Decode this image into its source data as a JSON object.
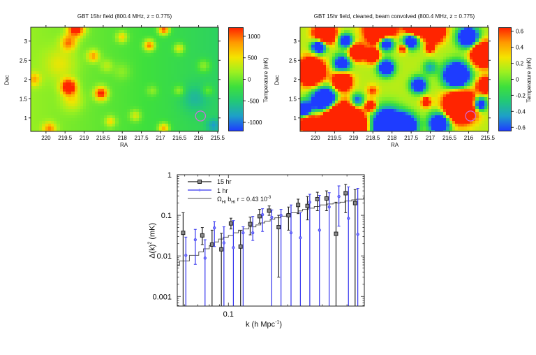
{
  "colors": {
    "colormap": [
      "#1e3cff",
      "#1ea0c8",
      "#22c878",
      "#3ee03c",
      "#9cf020",
      "#f4e400",
      "#ff9a00",
      "#ff2400"
    ],
    "black_series": "#222222",
    "blue_series": "#3333ee",
    "model_line": "#555555",
    "beam_circle": "#d070e0"
  },
  "maps": [
    {
      "title": "GBT 15hr field (800.4 MHz, z = 0.775)",
      "xlabel": "RA",
      "ylabel": "Dec",
      "colorbar_label": "Temperature (mK)",
      "xlim": [
        220.4,
        215.48
      ],
      "ylim": [
        0.65,
        3.36
      ],
      "clim": [
        -1210,
        1210
      ],
      "xticks": [
        "220",
        "219.5",
        "219",
        "218.5",
        "218",
        "217.5",
        "217",
        "216.5",
        "216",
        "215.5"
      ],
      "yticks": [
        "1",
        "1.5",
        "2",
        "2.5",
        "3"
      ],
      "cticks": [
        "-1000",
        "-500",
        "0",
        "500",
        "1000"
      ],
      "beam_circle": {
        "ra": 215.95,
        "dec": 1.05,
        "radius_deg": 0.13
      },
      "background": {
        "east": 150,
        "west": -380
      },
      "sources": [
        [
          219.4,
          1.8,
          1600,
          0.14
        ],
        [
          218.55,
          1.63,
          1400,
          0.12
        ],
        [
          219.4,
          2.95,
          900,
          0.14
        ],
        [
          219.2,
          3.32,
          1500,
          0.15
        ],
        [
          218.75,
          2.6,
          850,
          0.11
        ],
        [
          218.0,
          3.1,
          700,
          0.1
        ],
        [
          217.28,
          2.88,
          1150,
          0.1
        ],
        [
          216.9,
          3.3,
          1300,
          0.1
        ],
        [
          216.5,
          2.8,
          700,
          0.1
        ],
        [
          220.3,
          2.0,
          650,
          0.12
        ],
        [
          218.3,
          0.9,
          650,
          0.1
        ],
        [
          217.65,
          1.05,
          550,
          0.1
        ],
        [
          216.9,
          0.72,
          950,
          0.1
        ],
        [
          219.9,
          0.7,
          850,
          0.12
        ],
        [
          215.85,
          2.35,
          450,
          0.12
        ],
        [
          215.75,
          1.7,
          400,
          0.1
        ],
        [
          216.5,
          1.7,
          450,
          0.1
        ],
        [
          217.2,
          1.7,
          320,
          0.1
        ],
        [
          218.0,
          2.2,
          220,
          0.15
        ],
        [
          219.3,
          1.45,
          450,
          0.2
        ],
        [
          219.6,
          2.4,
          400,
          0.3
        ],
        [
          218.4,
          2.35,
          350,
          0.12
        ],
        [
          216.1,
          1.5,
          -350,
          0.25
        ],
        [
          215.6,
          0.8,
          -500,
          0.12
        ]
      ]
    },
    {
      "title": "GBT 15hr field, cleaned, beam convolved (800.4 MHz, z = 0.775)",
      "xlabel": "RA",
      "ylabel": "Dec",
      "colorbar_label": "Temperature (mK)",
      "xlim": [
        220.4,
        215.48
      ],
      "ylim": [
        0.65,
        3.36
      ],
      "clim": [
        -0.65,
        0.65
      ],
      "xticks": [
        "220",
        "219.5",
        "219",
        "218.5",
        "218",
        "217.5",
        "217",
        "216.5",
        "216",
        "215.5"
      ],
      "yticks": [
        "1",
        "1.5",
        "2",
        "2.5",
        "3"
      ],
      "cticks": [
        "-0.6",
        "-0.4",
        "-0.2",
        "0",
        "0.2",
        "0.4",
        "0.6"
      ],
      "beam_circle": {
        "ra": 215.95,
        "dec": 1.05,
        "radius_deg": 0.13
      },
      "background": {
        "east": 0.15,
        "west": 0.15
      },
      "sources": [
        [
          220.1,
          2.2,
          2.2,
          0.22
        ],
        [
          219.75,
          3.2,
          2.0,
          0.18
        ],
        [
          218.3,
          3.3,
          2.2,
          0.25
        ],
        [
          217.4,
          3.35,
          1.6,
          0.18
        ],
        [
          216.9,
          3.25,
          2.0,
          0.18
        ],
        [
          215.6,
          2.65,
          2.2,
          0.2
        ],
        [
          219.3,
          1.95,
          1.8,
          0.16
        ],
        [
          219.4,
          0.95,
          2.6,
          0.3
        ],
        [
          218.9,
          0.8,
          1.6,
          0.2
        ],
        [
          216.2,
          1.3,
          2.6,
          0.26
        ],
        [
          215.55,
          1.85,
          1.8,
          0.13
        ],
        [
          218.9,
          2.7,
          1.6,
          0.14
        ],
        [
          218.5,
          2.6,
          1.4,
          0.12
        ],
        [
          220.2,
          0.85,
          1.8,
          0.15
        ],
        [
          217.7,
          2.8,
          0.9,
          0.08
        ],
        [
          217.0,
          2.8,
          1.0,
          0.08
        ],
        [
          217.1,
          1.4,
          0.9,
          0.09
        ],
        [
          218.55,
          1.3,
          1.1,
          0.1
        ],
        [
          218.5,
          1.7,
          0.5,
          0.1
        ],
        [
          219.9,
          2.85,
          -2.0,
          0.12
        ],
        [
          219.75,
          1.45,
          -2.2,
          0.22
        ],
        [
          219.2,
          3.0,
          -1.4,
          0.12
        ],
        [
          218.15,
          2.95,
          -1.8,
          0.14
        ],
        [
          217.5,
          3.0,
          -1.6,
          0.14
        ],
        [
          218.15,
          2.3,
          -1.6,
          0.14
        ],
        [
          217.3,
          1.85,
          -1.4,
          0.14
        ],
        [
          218.1,
          0.8,
          -2.2,
          0.28
        ],
        [
          217.6,
          0.8,
          -1.8,
          0.18
        ],
        [
          216.3,
          2.1,
          -2.2,
          0.22
        ],
        [
          215.7,
          1.35,
          -1.6,
          0.12
        ],
        [
          216.75,
          0.85,
          -1.8,
          0.18
        ],
        [
          220.3,
          1.2,
          -1.8,
          0.14
        ],
        [
          219.3,
          2.4,
          -1.4,
          0.15
        ],
        [
          216.0,
          3.1,
          -1.8,
          0.18
        ],
        [
          217.0,
          2.3,
          -0.6,
          0.12
        ],
        [
          218.9,
          1.45,
          -0.9,
          0.12
        ]
      ]
    }
  ],
  "chart_data": {
    "type": "scatter",
    "xlabel": "k (h Mpc",
    "xlabel_sup": "-1",
    "xlabel_end": ")",
    "ylabel": "Δ(k)",
    "ylabel_sup": "2",
    "ylabel_end": " (mK)",
    "xscale": "log",
    "yscale": "log",
    "xlim": [
      0.055,
      0.49
    ],
    "ylim": [
      0.00058,
      1.0
    ],
    "xticks": [
      {
        "value": 0.1,
        "label": "0.1"
      }
    ],
    "yticks": [
      {
        "value": 1,
        "label": "1"
      },
      {
        "value": 0.1,
        "label": "0.1"
      },
      {
        "value": 0.01,
        "label": "0.01"
      },
      {
        "value": 0.001,
        "label": "0.001"
      }
    ],
    "legend_position": "top-left",
    "series": [
      {
        "name": "15 hr",
        "marker": "square",
        "points": [
          [
            0.0589,
            0.037,
            null,
            0.116
          ],
          [
            0.0737,
            0.032,
            0.019,
            0.05
          ],
          [
            0.0826,
            0.019,
            null,
            0.043
          ],
          [
            0.0921,
            0.0145,
            null,
            0.036
          ],
          [
            0.103,
            0.063,
            0.046,
            0.085
          ],
          [
            0.1153,
            0.017,
            null,
            0.042
          ],
          [
            0.129,
            0.061,
            0.033,
            0.09
          ],
          [
            0.144,
            0.095,
            0.064,
            0.14
          ],
          [
            0.161,
            0.13,
            0.1,
            0.17
          ],
          [
            0.18,
            0.051,
            0.003,
            0.1
          ],
          [
            0.202,
            0.1,
            0.043,
            0.16
          ],
          [
            0.226,
            0.18,
            0.11,
            0.25
          ],
          [
            0.252,
            0.17,
            0.077,
            0.29
          ],
          [
            0.283,
            0.25,
            0.13,
            0.37
          ],
          [
            0.315,
            0.26,
            0.13,
            0.4
          ],
          [
            0.352,
            0.035,
            null,
            0.21
          ],
          [
            0.394,
            0.35,
            0.116,
            0.58
          ],
          [
            0.44,
            0.2,
            null,
            0.43
          ]
        ]
      },
      {
        "name": "1 hr",
        "marker": "dot",
        "points": [
          [
            0.0608,
            0.0103,
            null,
            0.029
          ],
          [
            0.0679,
            0.025,
            0.0062,
            0.045
          ],
          [
            0.0761,
            0.0088,
            null,
            0.025
          ],
          [
            0.0849,
            0.049,
            0.017,
            0.07
          ],
          [
            0.0949,
            0.021,
            null,
            0.052
          ],
          [
            0.106,
            0.016,
            null,
            0.074
          ],
          [
            0.1188,
            0.037,
            null,
            0.052
          ],
          [
            0.133,
            0.037,
            0.024,
            0.094
          ],
          [
            0.149,
            0.104,
            0.04,
            0.145
          ],
          [
            0.166,
            0.089,
            null,
            0.135
          ],
          [
            0.185,
            0.1,
            null,
            0.14
          ],
          [
            0.208,
            0.037,
            null,
            0.18
          ],
          [
            0.232,
            0.028,
            null,
            0.116
          ],
          [
            0.259,
            0.21,
            null,
            0.33
          ],
          [
            0.29,
            0.043,
            null,
            0.31
          ],
          [
            0.325,
            0.16,
            null,
            0.36
          ],
          [
            0.364,
            0.29,
            0.054,
            0.53
          ],
          [
            0.407,
            0.084,
            null,
            0.5
          ],
          [
            0.454,
            0.034,
            null,
            0.46
          ]
        ]
      },
      {
        "name": "Ω",
        "name_sub1": "HI",
        "name_mid": " b",
        "name_sub2": "HI",
        "name_end": " r = 0.43 10",
        "name_sup": "-3",
        "type": "step",
        "points": [
          [
            0.055,
            0.0058
          ],
          [
            0.0565,
            0.0075
          ],
          [
            0.0634,
            0.0103
          ],
          [
            0.0707,
            0.0125
          ],
          [
            0.0747,
            0.015
          ],
          [
            0.08,
            0.018
          ],
          [
            0.0849,
            0.022
          ],
          [
            0.0892,
            0.026
          ],
          [
            0.0942,
            0.029
          ],
          [
            0.1,
            0.032
          ],
          [
            0.106,
            0.037
          ],
          [
            0.1124,
            0.043
          ],
          [
            0.1188,
            0.046
          ],
          [
            0.127,
            0.052
          ],
          [
            0.138,
            0.058
          ],
          [
            0.146,
            0.065
          ],
          [
            0.153,
            0.072
          ],
          [
            0.163,
            0.08
          ],
          [
            0.172,
            0.087
          ],
          [
            0.184,
            0.095
          ],
          [
            0.197,
            0.105
          ],
          [
            0.208,
            0.115
          ],
          [
            0.226,
            0.128
          ],
          [
            0.238,
            0.14
          ],
          [
            0.255,
            0.15
          ],
          [
            0.273,
            0.165
          ],
          [
            0.292,
            0.18
          ],
          [
            0.318,
            0.19
          ],
          [
            0.34,
            0.2
          ],
          [
            0.369,
            0.21
          ],
          [
            0.39,
            0.225
          ],
          [
            0.423,
            0.24
          ],
          [
            0.447,
            0.25
          ],
          [
            0.485,
            0.27
          ]
        ]
      }
    ]
  }
}
